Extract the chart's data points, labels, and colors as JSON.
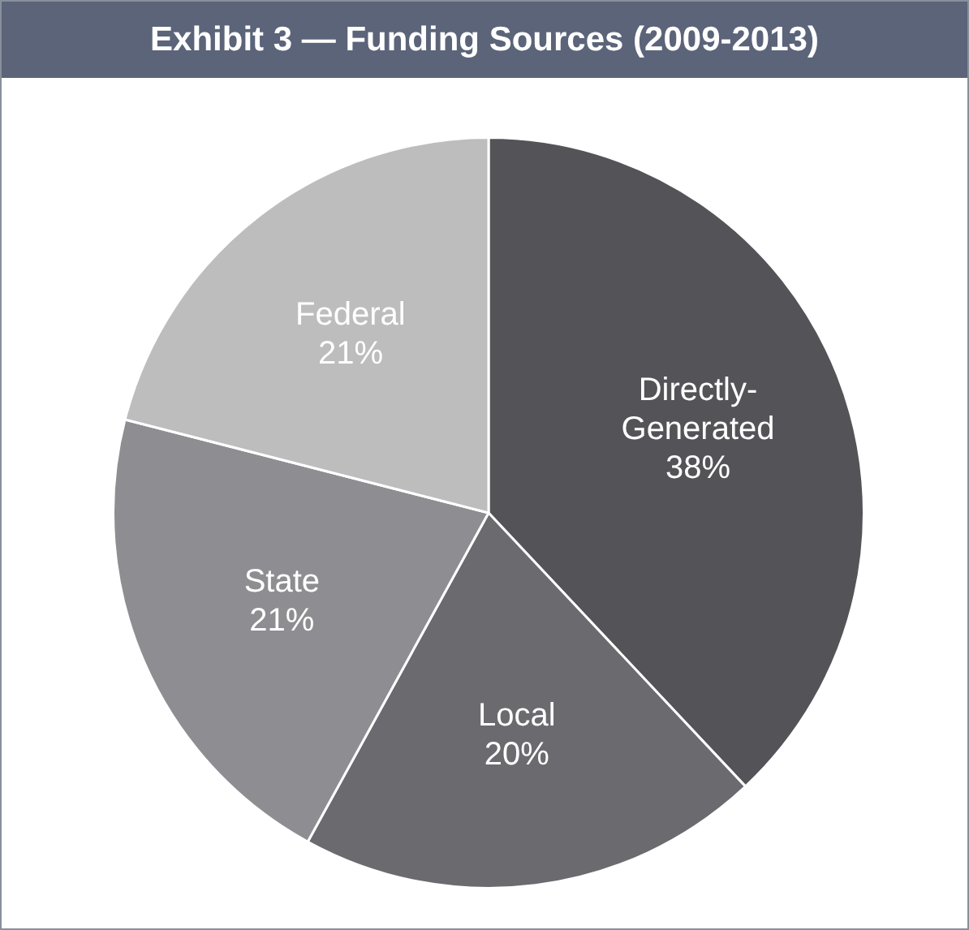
{
  "chart_data": {
    "type": "pie",
    "title": "Exhibit 3 — Funding Sources (2009-2013)",
    "categories": [
      "Directly-Generated",
      "Local",
      "State",
      "Federal"
    ],
    "values": [
      38,
      20,
      21,
      21
    ],
    "colors": [
      "#545358",
      "#6b6a6f",
      "#8e8d91",
      "#bdbdbd"
    ],
    "value_labels": [
      "38%",
      "20%",
      "21%",
      "21%"
    ]
  }
}
